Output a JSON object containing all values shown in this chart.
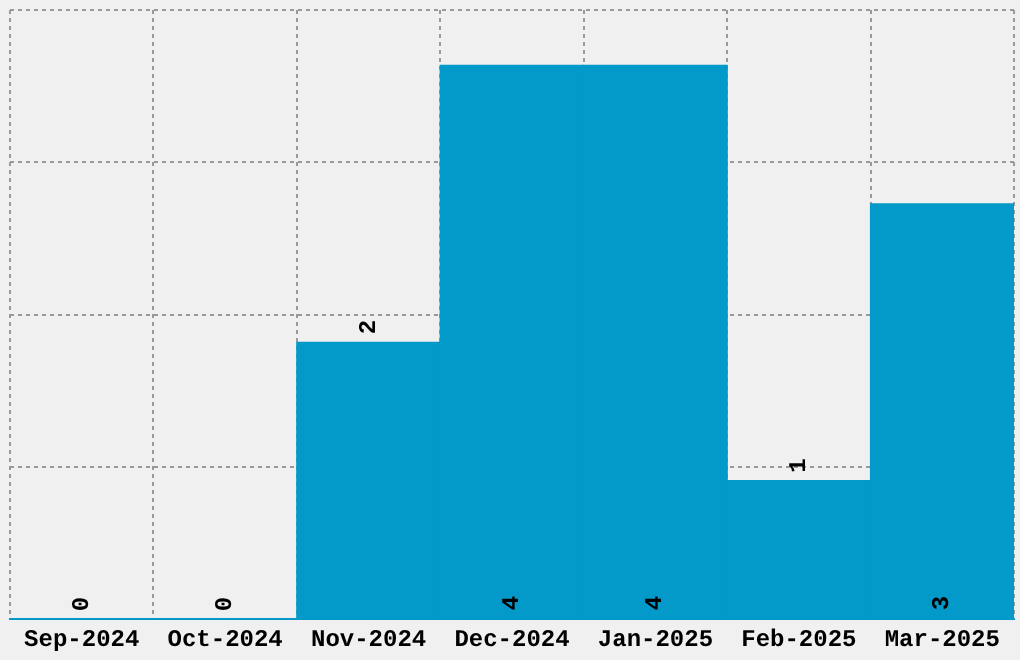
{
  "chart_data": {
    "type": "bar",
    "categories": [
      "Sep-2024",
      "Oct-2024",
      "Nov-2024",
      "Dec-2024",
      "Jan-2025",
      "Feb-2025",
      "Mar-2025"
    ],
    "values": [
      0,
      0,
      2,
      4,
      4,
      1,
      3
    ],
    "color": "#0399c9",
    "ylim": [
      0,
      4.4
    ],
    "yticks": [
      {
        "value": 0,
        "label": null
      },
      {
        "value": 1.1,
        "label": null
      },
      {
        "value": 2.2,
        "label": null
      },
      {
        "value": 3.3,
        "label": null
      },
      {
        "value": 4.4,
        "label": null
      }
    ],
    "grid": true,
    "tick_labels": "x",
    "data_labels": true
  }
}
